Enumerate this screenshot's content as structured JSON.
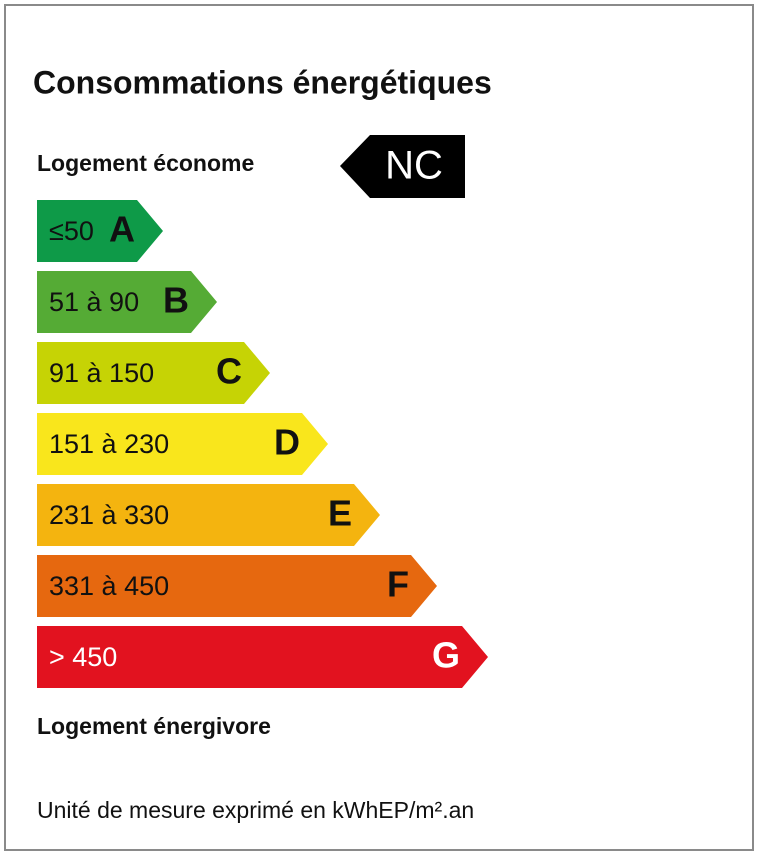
{
  "title": "Consommations énergétiques",
  "top_label": "Logement économe",
  "rating": "NC",
  "classes": [
    {
      "range": "≤50",
      "letter": "A",
      "color": "#0e9a48",
      "text_color": "#111111"
    },
    {
      "range": "51 à 90",
      "letter": "B",
      "color": "#55ab35",
      "text_color": "#111111"
    },
    {
      "range": "91 à 150",
      "letter": "C",
      "color": "#c6d305",
      "text_color": "#111111"
    },
    {
      "range": "151 à 230",
      "letter": "D",
      "color": "#f9e61c",
      "text_color": "#111111"
    },
    {
      "range": "231 à 330",
      "letter": "E",
      "color": "#f4b40f",
      "text_color": "#111111"
    },
    {
      "range": "331 à 450",
      "letter": "F",
      "color": "#e6680f",
      "text_color": "#111111"
    },
    {
      "range": "> 450",
      "letter": "G",
      "color": "#e2121f",
      "text_color": "#ffffff"
    }
  ],
  "bottom_label": "Logement énergivore",
  "unit_note": "Unité de mesure exprimé en kWhEP/m².an"
}
